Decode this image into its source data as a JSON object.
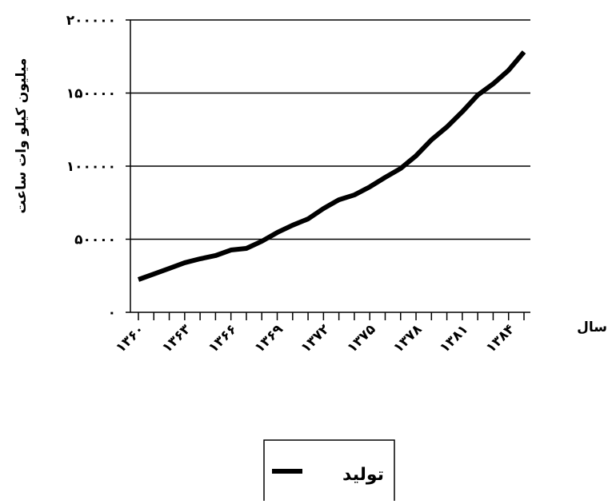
{
  "chart_data": {
    "type": "line",
    "y_label": "میلیون کیلو وات ساعت",
    "x_label": "سال",
    "categories": [
      "۱۳۶۰",
      null,
      null,
      "۱۳۶۳",
      null,
      null,
      "۱۳۶۶",
      null,
      null,
      "۱۳۶۹",
      null,
      null,
      "۱۳۷۲",
      null,
      null,
      "۱۳۷۵",
      null,
      null,
      "۱۳۷۸",
      null,
      null,
      "۱۳۸۱",
      null,
      null,
      "۱۳۸۴",
      null
    ],
    "series": [
      {
        "name": "تولید",
        "color": "#000000",
        "values": [
          22400,
          26200,
          30000,
          33900,
          36600,
          38800,
          42600,
          43700,
          48600,
          54600,
          59600,
          63900,
          71000,
          77000,
          80300,
          85800,
          92300,
          98400,
          107100,
          118000,
          126800,
          137200,
          148600,
          156300,
          165600,
          178100
        ]
      }
    ],
    "ylim": [
      0,
      200000
    ],
    "yticks": [
      {
        "value": 0,
        "label": "۰"
      },
      {
        "value": 50000,
        "label": "۵۰۰۰۰"
      },
      {
        "value": 100000,
        "label": "۱۰۰۰۰۰"
      },
      {
        "value": 150000,
        "label": "۱۵۰۰۰۰"
      },
      {
        "value": 200000,
        "label": "۲۰۰۰۰۰"
      }
    ],
    "grid": true
  }
}
